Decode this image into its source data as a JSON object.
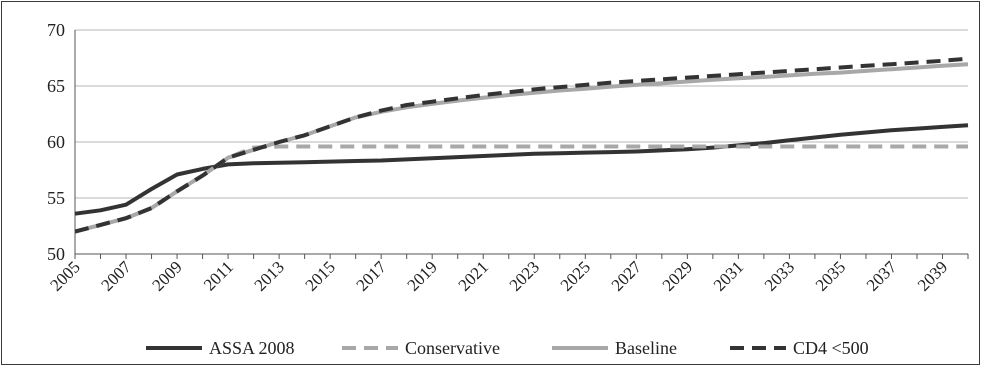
{
  "chart_data": {
    "type": "line",
    "title": "",
    "xlabel": "",
    "ylabel": "",
    "ylim": [
      50,
      70
    ],
    "yticks": [
      "50",
      "55",
      "60",
      "65",
      "70"
    ],
    "xlim": [
      2005,
      2040
    ],
    "xticks": [
      "2005",
      "2007",
      "2009",
      "2011",
      "2013",
      "2015",
      "2017",
      "2019",
      "2021",
      "2023",
      "2025",
      "2027",
      "2029",
      "2031",
      "2033",
      "2035",
      "2037",
      "2039"
    ],
    "grid": "horizontal",
    "legend": "bottom",
    "x": [
      2005,
      2006,
      2007,
      2008,
      2009,
      2010,
      2011,
      2012,
      2013,
      2014,
      2015,
      2016,
      2017,
      2018,
      2019,
      2020,
      2021,
      2022,
      2023,
      2024,
      2025,
      2026,
      2027,
      2028,
      2029,
      2030,
      2031,
      2032,
      2033,
      2034,
      2035,
      2036,
      2037,
      2038,
      2039,
      2040
    ],
    "series": [
      {
        "name": "ASSA 2008",
        "color": "#333333",
        "dash": "solid",
        "values": [
          53.6,
          53.9,
          54.4,
          55.8,
          57.1,
          57.6,
          58.0,
          58.1,
          58.15,
          58.2,
          58.25,
          58.3,
          58.35,
          58.45,
          58.55,
          58.65,
          58.75,
          58.85,
          58.95,
          59.0,
          59.05,
          59.1,
          59.15,
          59.25,
          59.35,
          59.5,
          59.7,
          59.9,
          60.15,
          60.4,
          60.65,
          60.85,
          61.05,
          61.2,
          61.35,
          61.5
        ]
      },
      {
        "name": "Conservative",
        "color": "#a8a8a8",
        "dash": "dashed",
        "values": [
          52.0,
          52.6,
          53.2,
          54.1,
          55.6,
          57.0,
          58.6,
          59.5,
          59.6,
          59.6,
          59.6,
          59.6,
          59.6,
          59.6,
          59.6,
          59.6,
          59.6,
          59.6,
          59.6,
          59.6,
          59.6,
          59.6,
          59.6,
          59.6,
          59.6,
          59.6,
          59.6,
          59.6,
          59.6,
          59.6,
          59.6,
          59.6,
          59.6,
          59.6,
          59.6,
          59.6
        ]
      },
      {
        "name": "Baseline",
        "color": "#a8a8a8",
        "dash": "solid",
        "values": [
          52.0,
          52.6,
          53.2,
          54.1,
          55.6,
          57.0,
          58.6,
          59.3,
          60.0,
          60.6,
          61.4,
          62.2,
          62.7,
          63.1,
          63.4,
          63.7,
          63.95,
          64.2,
          64.4,
          64.6,
          64.75,
          64.95,
          65.1,
          65.25,
          65.4,
          65.55,
          65.7,
          65.8,
          65.95,
          66.1,
          66.2,
          66.35,
          66.5,
          66.65,
          66.8,
          66.95
        ]
      },
      {
        "name": "CD4 <500",
        "color": "#333333",
        "dash": "dashed",
        "values": [
          52.0,
          52.6,
          53.2,
          54.1,
          55.6,
          57.0,
          58.6,
          59.3,
          60.0,
          60.6,
          61.4,
          62.2,
          62.8,
          63.3,
          63.6,
          63.9,
          64.2,
          64.45,
          64.7,
          64.9,
          65.1,
          65.3,
          65.45,
          65.6,
          65.75,
          65.9,
          66.05,
          66.2,
          66.35,
          66.5,
          66.65,
          66.8,
          66.95,
          67.1,
          67.25,
          67.45
        ]
      }
    ]
  }
}
